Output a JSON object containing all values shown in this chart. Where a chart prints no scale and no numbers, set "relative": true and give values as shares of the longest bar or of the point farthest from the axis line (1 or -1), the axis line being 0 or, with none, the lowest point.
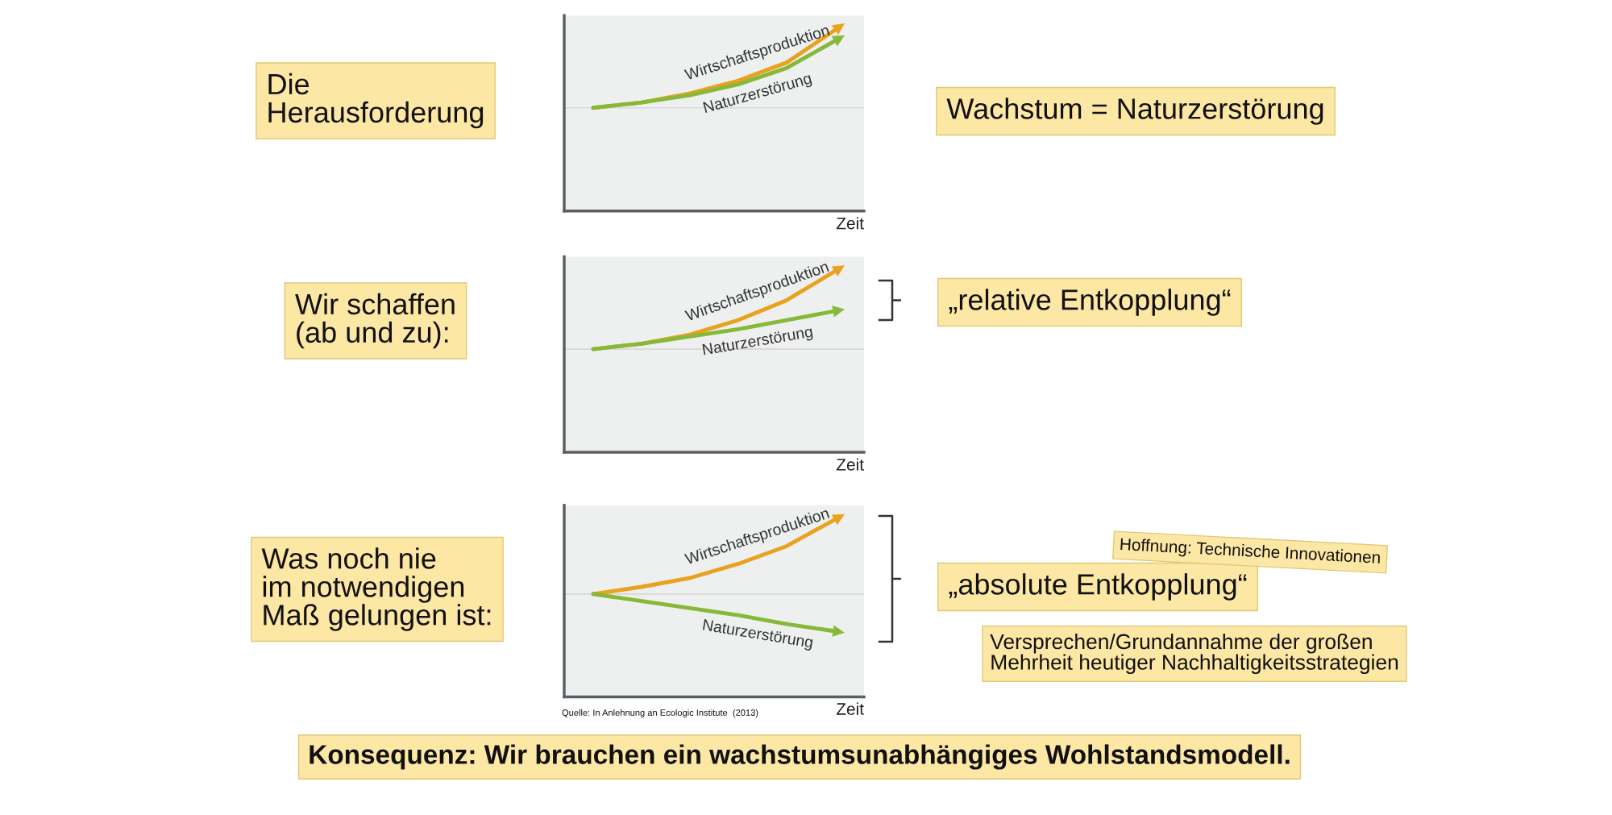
{
  "chart_data": [
    {
      "type": "line",
      "relative": true,
      "xlabel": "Zeit",
      "categories": [
        null,
        null,
        null,
        null,
        null,
        null
      ],
      "series": [
        {
          "name": "Wirtschaftsproduktion",
          "color": "#e8a21f",
          "values": [
            0.57,
            0.6,
            0.65,
            0.72,
            0.82,
            1.0
          ]
        },
        {
          "name": "Naturzerstörung",
          "color": "#86b83a",
          "values": [
            0.57,
            0.6,
            0.64,
            0.7,
            0.79,
            0.94
          ]
        }
      ],
      "ref_lines": [
        {
          "axis": "y",
          "value": 0.57,
          "color": "#d8d8d8"
        }
      ],
      "grid": false,
      "annotations": [
        "Die\nHerausforderung",
        "Wachstum = Naturzerstörung"
      ]
    },
    {
      "type": "line",
      "relative": true,
      "xlabel": "Zeit",
      "categories": [
        null,
        null,
        null,
        null,
        null,
        null
      ],
      "series": [
        {
          "name": "Wirtschaftsproduktion",
          "color": "#e8a21f",
          "values": [
            0.57,
            0.6,
            0.65,
            0.73,
            0.84,
            1.0
          ]
        },
        {
          "name": "Naturzerstörung",
          "color": "#86b83a",
          "values": [
            0.57,
            0.6,
            0.64,
            0.68,
            0.73,
            0.78
          ]
        }
      ],
      "ref_lines": [
        {
          "axis": "y",
          "value": 0.57,
          "color": "#d8d8d8"
        }
      ],
      "grid": false,
      "annotations": [
        "Wir schaffen\n(ab und zu):",
        "„relative Entkopplung“"
      ]
    },
    {
      "type": "line",
      "relative": true,
      "xlabel": "Zeit",
      "categories": [
        null,
        null,
        null,
        null,
        null,
        null
      ],
      "series": [
        {
          "name": "Wirtschaftsproduktion",
          "color": "#e8a21f",
          "values": [
            0.58,
            0.62,
            0.67,
            0.75,
            0.85,
            1.0
          ]
        },
        {
          "name": "Naturzerstörung",
          "color": "#86b83a",
          "values": [
            0.58,
            0.54,
            0.5,
            0.46,
            0.41,
            0.37
          ]
        }
      ],
      "ref_lines": [
        {
          "axis": "y",
          "value": 0.58,
          "color": "#d8d8d8"
        }
      ],
      "grid": false,
      "annotations": [
        "Was noch nie\nim notwendigen\nMaß gelungen ist:",
        "„absolute Entkopplung“",
        "Hoffnung: Technische Innovationen",
        "Versprechen/Grundannahme der großen\nMehrheit heutiger Nachhaltigkeitsstrategien",
        "Quelle: In Anlehnung an Ecologic Institute  (2013)",
        "Konsequenz: Wir brauchen ein wachstumsunabhängiges Wohlstandsmodell."
      ]
    }
  ]
}
